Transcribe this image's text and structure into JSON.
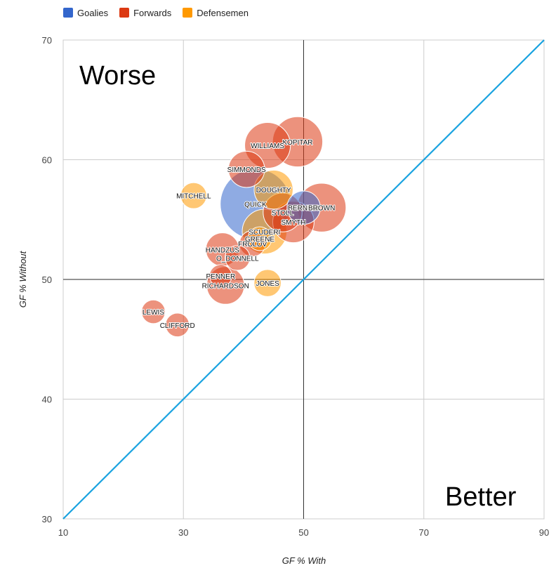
{
  "chart_data": {
    "type": "scatter",
    "title": "",
    "xlabel": "GF % With",
    "ylabel": "GF % Without",
    "xlim": [
      10,
      90
    ],
    "ylim": [
      30,
      70
    ],
    "x_ticks": [
      10,
      30,
      50,
      70,
      90
    ],
    "y_ticks": [
      30,
      40,
      50,
      60,
      70
    ],
    "grid": true,
    "legend_position": "top-left",
    "zone_labels": {
      "worse": "Worse",
      "better": "Better"
    },
    "reference_lines": {
      "vertical_x": 50,
      "horizontal_y": 50,
      "diagonal": "y=x"
    },
    "colors": {
      "Goalies": "#3366cc",
      "Forwards": "#dc3912",
      "Defensemen": "#ff9900",
      "diagonal": "#1aa3e0"
    },
    "series": [
      {
        "name": "Goalies",
        "points": [
          {
            "label": "QUICK",
            "x": 42,
            "y": 56.3,
            "size": 10
          },
          {
            "label": "BERNIER",
            "x": 50,
            "y": 56,
            "size": 1.6
          }
        ]
      },
      {
        "name": "Forwards",
        "points": [
          {
            "label": "KOPITAR",
            "x": 49,
            "y": 61.5,
            "size": 4.5
          },
          {
            "label": "WILLIAMS",
            "x": 44,
            "y": 61.2,
            "size": 3.6
          },
          {
            "label": "SIMMONDS",
            "x": 40.5,
            "y": 59.2,
            "size": 2
          },
          {
            "label": "BROWN",
            "x": 53,
            "y": 56,
            "size": 4.2
          },
          {
            "label": "STOLL",
            "x": 46.5,
            "y": 55.6,
            "size": 2.4
          },
          {
            "label": "SMYTH",
            "x": 48.3,
            "y": 54.8,
            "size": 2.8
          },
          {
            "label": "FROLOV",
            "x": 41.5,
            "y": 53,
            "size": 0.8
          },
          {
            "label": "HANDZUS",
            "x": 36.5,
            "y": 52.5,
            "size": 1.6
          },
          {
            "label": "O_DONNELL",
            "x": 39,
            "y": 51.8,
            "size": 0.7
          },
          {
            "label": "PENNER",
            "x": 36.2,
            "y": 50.3,
            "size": 0.5
          },
          {
            "label": "RICHARDSON",
            "x": 37,
            "y": 49.5,
            "size": 2.2
          },
          {
            "label": "LEWIS",
            "x": 25,
            "y": 47.3,
            "size": 0.6
          },
          {
            "label": "CLIFFORD",
            "x": 29,
            "y": 46.2,
            "size": 0.6
          }
        ]
      },
      {
        "name": "Defensemen",
        "points": [
          {
            "label": "MITCHELL",
            "x": 31.7,
            "y": 57,
            "size": 0.8
          },
          {
            "label": "DOUGHTY",
            "x": 45,
            "y": 57.5,
            "size": 2.4
          },
          {
            "label": "SCUDERI",
            "x": 43.5,
            "y": 54,
            "size": 3.4
          },
          {
            "label": "GREENE",
            "x": 42.7,
            "y": 53.4,
            "size": 0.6
          },
          {
            "label": "JONES",
            "x": 44,
            "y": 49.7,
            "size": 0.9
          }
        ]
      }
    ]
  }
}
